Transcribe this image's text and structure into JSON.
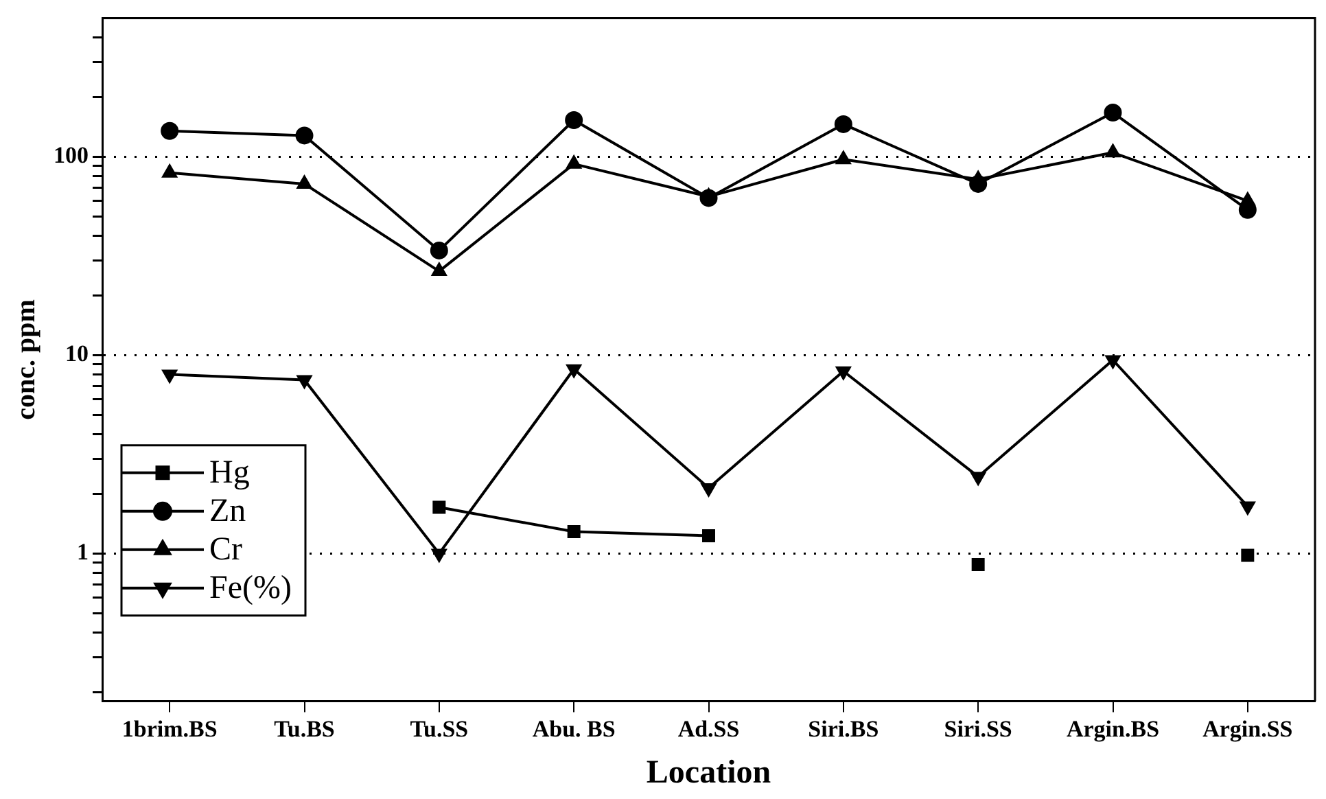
{
  "chart_data": {
    "type": "line",
    "xlabel": "Location",
    "ylabel": "conc. ppm",
    "categories": [
      "1brim.BS",
      "Tu.BS",
      "Tu.SS",
      "Abu. BS",
      "Ad.SS",
      "Siri.BS",
      "Siri.SS",
      "Argin.BS",
      "Argin.SS"
    ],
    "series": [
      {
        "name": "Hg",
        "color": "#000000",
        "marker": "square",
        "values": [
          null,
          null,
          1.71,
          1.29,
          1.23,
          null,
          0.88,
          null,
          0.98
        ]
      },
      {
        "name": "Zn",
        "color": "#000000",
        "marker": "circle",
        "values": [
          135,
          128,
          33.7,
          153,
          62,
          146,
          73,
          167,
          54
        ]
      },
      {
        "name": "Cr",
        "color": "#000000",
        "marker": "triangle",
        "values": [
          83,
          73,
          26.5,
          92,
          63,
          97,
          77,
          105,
          60
        ]
      },
      {
        "name": "Fe(%)",
        "color": "#000000",
        "marker": "triangle-down",
        "values": [
          8.0,
          7.5,
          1.0,
          8.5,
          2.14,
          8.3,
          2.44,
          9.45,
          1.73
        ]
      }
    ],
    "log": "y",
    "ylim": [
      0.18,
      500
    ],
    "yticks": [
      {
        "value": 0.2,
        "label": null
      },
      {
        "value": 0.3,
        "label": null
      },
      {
        "value": 0.4,
        "label": null
      },
      {
        "value": 0.5,
        "label": null
      },
      {
        "value": 0.6,
        "label": null
      },
      {
        "value": 0.7,
        "label": null
      },
      {
        "value": 0.8,
        "label": null
      },
      {
        "value": 0.9,
        "label": null
      },
      1,
      {
        "value": 2,
        "label": null
      },
      {
        "value": 3,
        "label": null
      },
      {
        "value": 4,
        "label": null
      },
      {
        "value": 5,
        "label": null
      },
      {
        "value": 6,
        "label": null
      },
      {
        "value": 7,
        "label": null
      },
      {
        "value": 8,
        "label": null
      },
      {
        "value": 9,
        "label": null
      },
      10,
      {
        "value": 20,
        "label": null
      },
      {
        "value": 30,
        "label": null
      },
      {
        "value": 40,
        "label": null
      },
      {
        "value": 50,
        "label": null
      },
      {
        "value": 60,
        "label": null
      },
      {
        "value": 70,
        "label": null
      },
      {
        "value": 80,
        "label": null
      },
      {
        "value": 90,
        "label": null
      },
      100,
      {
        "value": 200,
        "label": null
      },
      {
        "value": 300,
        "label": null
      },
      {
        "value": 400,
        "label": null
      }
    ],
    "grid": "y",
    "line_style": "solid",
    "legend": "left"
  }
}
